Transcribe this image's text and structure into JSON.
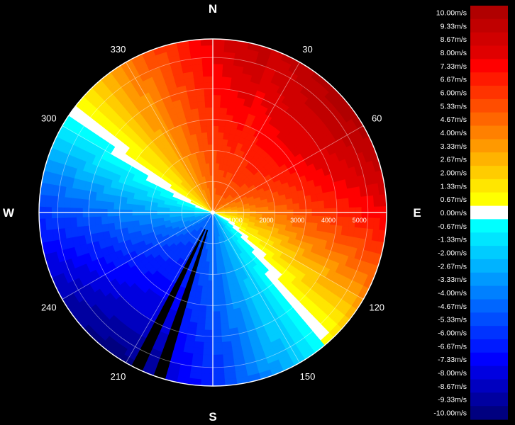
{
  "chart_data": {
    "type": "heatmap",
    "subtype": "polar radial-velocity PPI",
    "cardinals": [
      "N",
      "E",
      "S",
      "W"
    ],
    "angle_labels": [
      {
        "deg": 30,
        "text": "30"
      },
      {
        "deg": 60,
        "text": "60"
      },
      {
        "deg": 120,
        "text": "120"
      },
      {
        "deg": 150,
        "text": "150"
      },
      {
        "deg": 210,
        "text": "210"
      },
      {
        "deg": 240,
        "text": "240"
      },
      {
        "deg": 300,
        "text": "300"
      },
      {
        "deg": 330,
        "text": "330"
      }
    ],
    "range_rings": [
      1000,
      2000,
      3000,
      4000,
      5000
    ],
    "range_labels": [
      "1000",
      "2000",
      "3000",
      "4000",
      "5000"
    ],
    "range_max": 5600,
    "spokes_deg": [
      0,
      30,
      60,
      90,
      120,
      150,
      180,
      210,
      240,
      270,
      300,
      330
    ],
    "field": {
      "max_velocity": 10.0,
      "toward_direction_deg": 20,
      "zero_line": [
        {
          "deg": 90,
          "range": 0
        },
        {
          "deg": 120,
          "range": 1200
        },
        {
          "deg": 135,
          "range": 3000
        },
        {
          "deg": 140,
          "range": 5400
        },
        {
          "deg": 270,
          "range": 0
        },
        {
          "deg": 285,
          "range": 1700
        },
        {
          "deg": 295,
          "range": 4000
        },
        {
          "deg": 298,
          "range": 5600
        }
      ],
      "gaps_deg": [
        [
          197,
          201
        ],
        [
          204,
          207
        ]
      ]
    },
    "colorbar": {
      "labels": [
        "10.00m/s",
        "9.33m/s",
        "8.67m/s",
        "8.00m/s",
        "7.33m/s",
        "6.67m/s",
        "6.00m/s",
        "5.33m/s",
        "4.67m/s",
        "4.00m/s",
        "3.33m/s",
        "2.67m/s",
        "2.00m/s",
        "1.33m/s",
        "0.67m/s",
        "0.00m/s",
        "-0.67m/s",
        "-1.33m/s",
        "-2.00m/s",
        "-2.67m/s",
        "-3.33m/s",
        "-4.00m/s",
        "-4.67m/s",
        "-5.33m/s",
        "-6.00m/s",
        "-6.67m/s",
        "-7.33m/s",
        "-8.00m/s",
        "-8.67m/s",
        "-9.33m/s",
        "-10.00m/s"
      ],
      "values": [
        10.0,
        9.33,
        8.67,
        8.0,
        7.33,
        6.67,
        6.0,
        5.33,
        4.67,
        4.0,
        3.33,
        2.67,
        2.0,
        1.33,
        0.67,
        0.0,
        -0.67,
        -1.33,
        -2.0,
        -2.67,
        -3.33,
        -4.0,
        -4.67,
        -5.33,
        -6.0,
        -6.67,
        -7.33,
        -8.0,
        -8.67,
        -9.33,
        -10.0
      ],
      "colors": [
        "#b00000",
        "#c00000",
        "#d00000",
        "#e00000",
        "#ff0000",
        "#ff1a00",
        "#ff3300",
        "#ff4d00",
        "#ff6600",
        "#ff8000",
        "#ff9900",
        "#ffb300",
        "#ffcc00",
        "#ffe600",
        "#ffff00",
        "#ffffff",
        "#00ffff",
        "#00e5ff",
        "#00ccff",
        "#00b3ff",
        "#0099ff",
        "#0080ff",
        "#0066ff",
        "#004dff",
        "#0033ff",
        "#001aff",
        "#0000ff",
        "#0000e0",
        "#0000c0",
        "#0000a0",
        "#000080"
      ]
    }
  }
}
